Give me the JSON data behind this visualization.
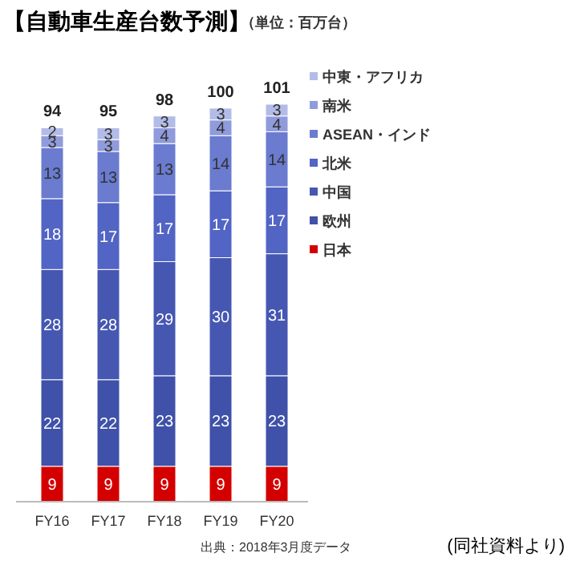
{
  "chart_data": {
    "type": "bar",
    "title": "【自動車生産台数予測】",
    "subtitle": "（単位：百万台）",
    "categories": [
      "FY16",
      "FY17",
      "FY18",
      "FY19",
      "FY20"
    ],
    "stacked": true,
    "data_labels": true,
    "legend": "right",
    "totals": [
      "94",
      "95",
      "98",
      "100",
      "101"
    ],
    "series": [
      {
        "name": "日本",
        "color": "#d40000",
        "values": [
          9,
          9,
          9,
          9,
          9
        ]
      },
      {
        "name": "欧州",
        "color": "#3f51a8",
        "values": [
          22,
          22,
          23,
          23,
          23
        ]
      },
      {
        "name": "中国",
        "color": "#4657b2",
        "values": [
          28,
          28,
          29,
          30,
          31
        ]
      },
      {
        "name": "北米",
        "color": "#5264c4",
        "values": [
          18,
          17,
          17,
          17,
          17
        ]
      },
      {
        "name": "ASEAN・インド",
        "color": "#6a7bd0",
        "values": [
          13,
          13,
          13,
          14,
          14
        ]
      },
      {
        "name": "南米",
        "color": "#8f9bdc",
        "values": [
          3,
          3,
          4,
          4,
          4
        ]
      },
      {
        "name": "中東・アフリカ",
        "color": "#b3bce8",
        "values": [
          2,
          3,
          3,
          3,
          3
        ]
      }
    ],
    "annotations": [
      "出典：2018年3月度データ",
      "(同社資料より)"
    ]
  }
}
